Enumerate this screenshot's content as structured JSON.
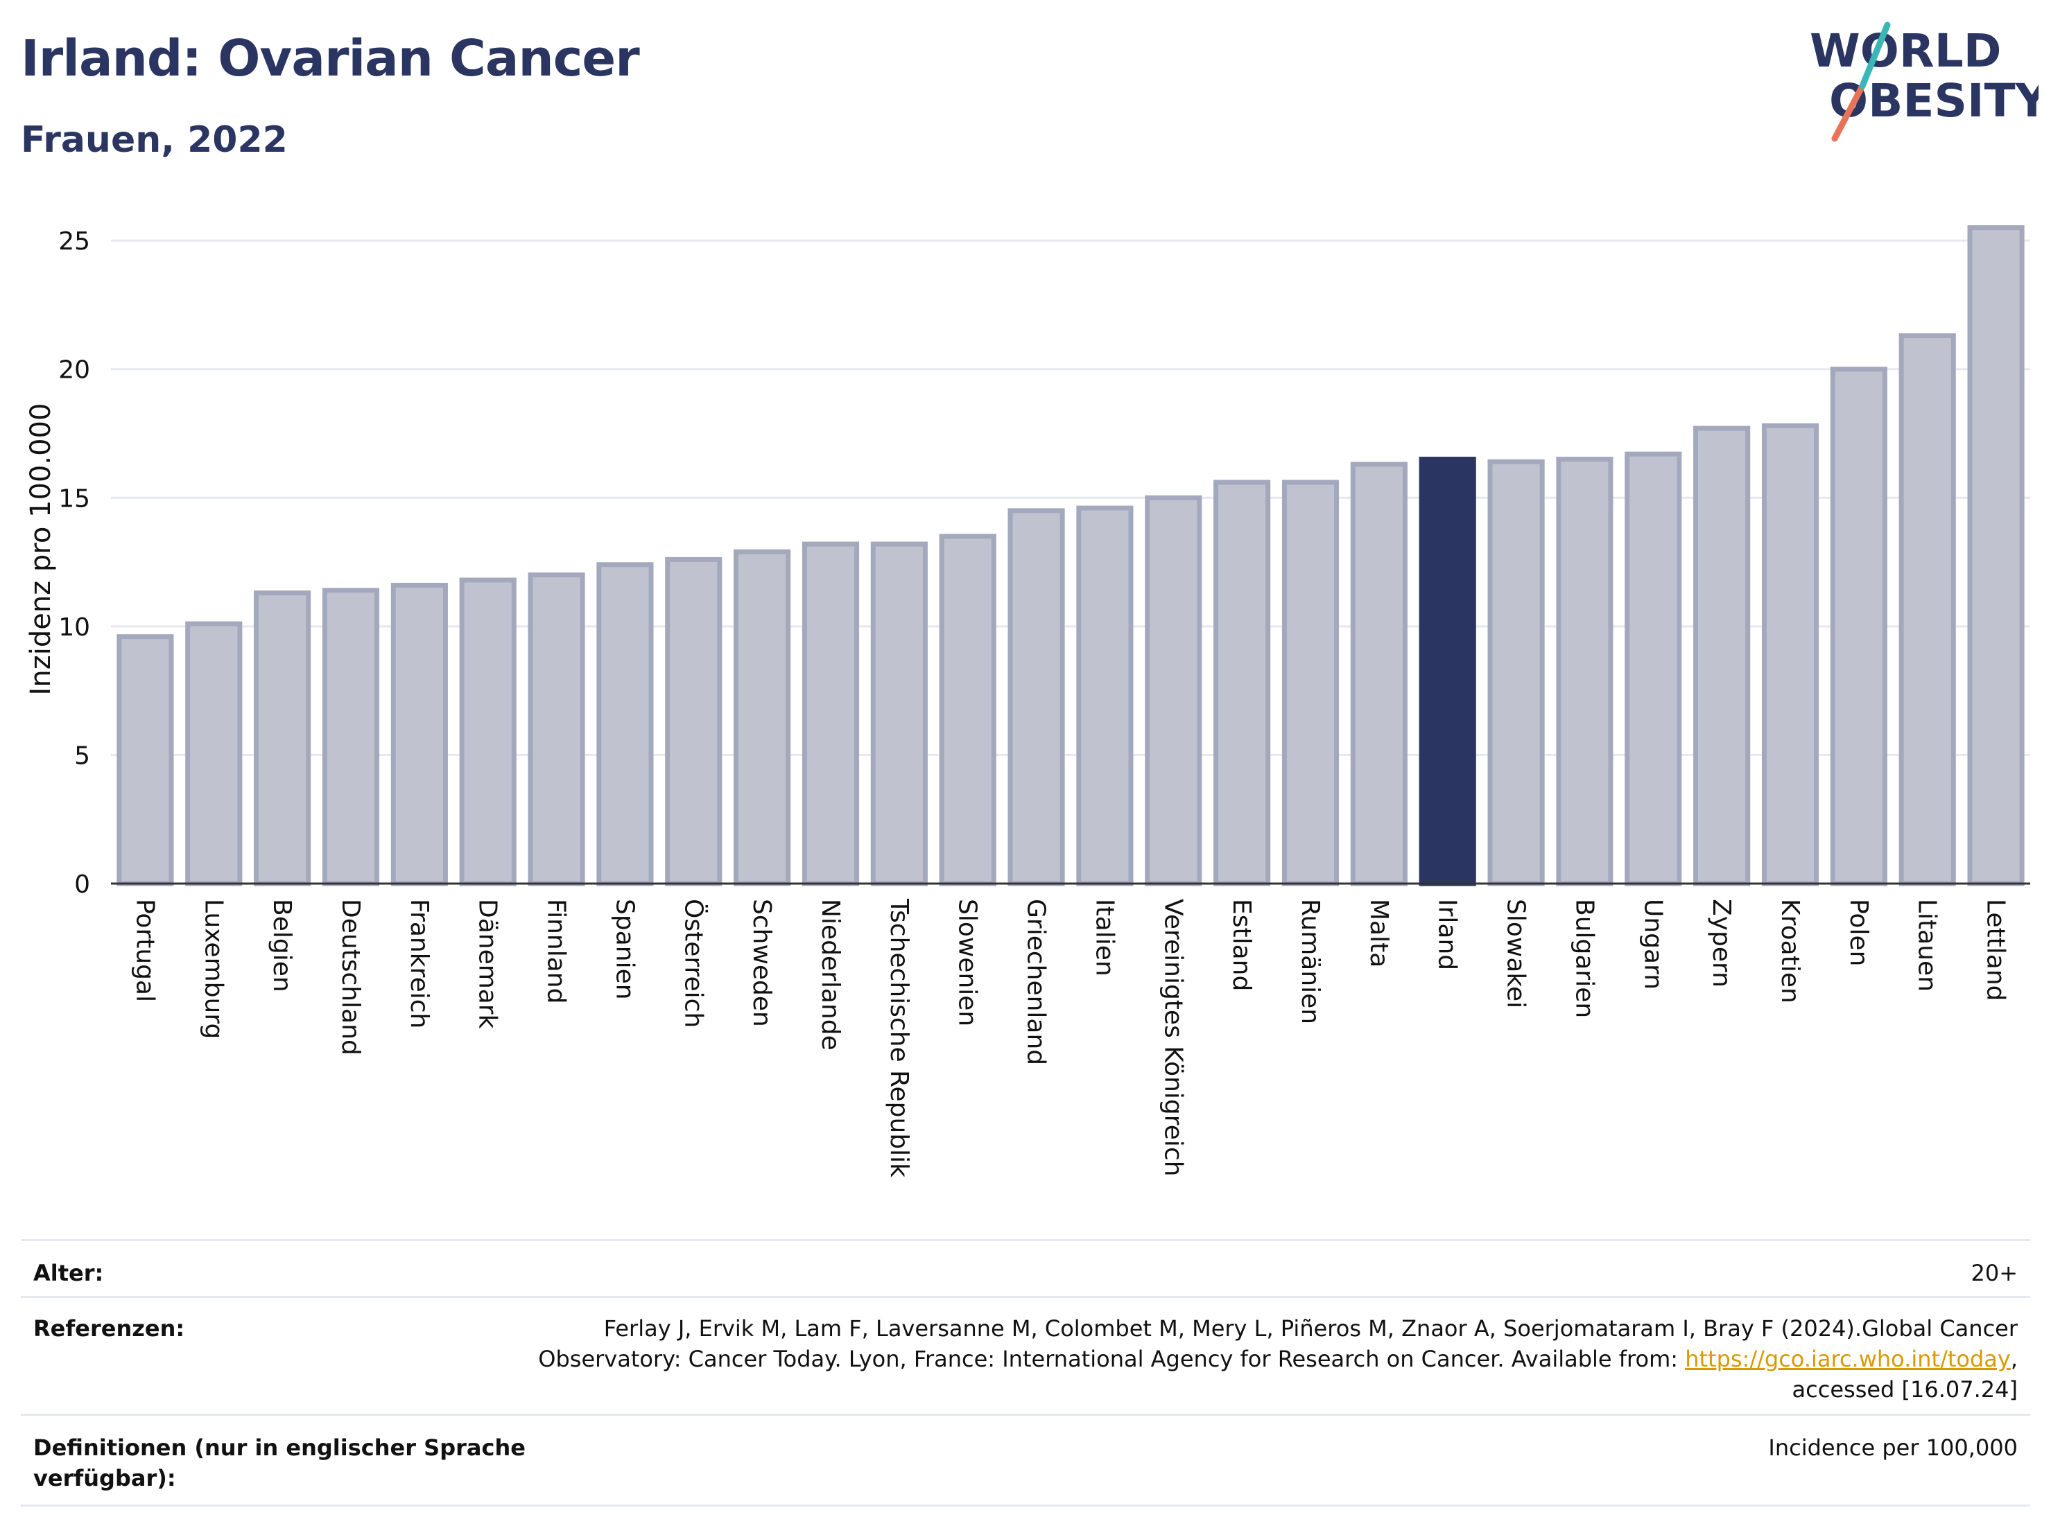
{
  "header": {
    "title": "Irland: Ovarian Cancer",
    "subtitle": "Frauen, 2022"
  },
  "logo": {
    "line1": "WORLD",
    "line2": "OBESITY",
    "colors": [
      "#2a3561",
      "#e8735a",
      "#3ab6b6"
    ]
  },
  "chart_data": {
    "type": "bar",
    "title": "Irland: Ovarian Cancer",
    "subtitle": "Frauen, 2022",
    "ylabel": "Inzidenz pro 100.000",
    "xlabel": "",
    "ylim": [
      0,
      26
    ],
    "yticks": [
      0,
      5,
      10,
      15,
      20,
      25
    ],
    "grid": true,
    "highlight": "Irland",
    "colors": {
      "default": "#c0c3cf",
      "default_edge": "#a3a8bd",
      "highlight": "#2a3561"
    },
    "categories": [
      "Portugal",
      "Luxemburg",
      "Belgien",
      "Deutschland",
      "Frankreich",
      "Dänemark",
      "Finnland",
      "Spanien",
      "Österreich",
      "Schweden",
      "Niederlande",
      "Tschechische Republik",
      "Slowenien",
      "Griechenland",
      "Italien",
      "Vereinigtes Königreich",
      "Estland",
      "Rumänien",
      "Malta",
      "Irland",
      "Slowakei",
      "Bulgarien",
      "Ungarn",
      "Zypern",
      "Kroatien",
      "Polen",
      "Litauen",
      "Lettland"
    ],
    "values": [
      9.6,
      10.1,
      11.3,
      11.4,
      11.6,
      11.8,
      12.0,
      12.4,
      12.6,
      12.9,
      13.2,
      13.2,
      13.5,
      14.5,
      14.6,
      15.0,
      15.6,
      15.6,
      16.3,
      16.5,
      16.4,
      16.5,
      16.7,
      17.7,
      17.8,
      20.0,
      21.3,
      25.5
    ]
  },
  "info": {
    "age_label": "Alter:",
    "age_value": "20+",
    "refs_label": "Referenzen:",
    "refs_text_1": "Ferlay J, Ervik M, Lam F, Laversanne M, Colombet M, Mery L, Piñeros M, Znaor A, Soerjomataram I, Bray F (2024).Global Cancer",
    "refs_text_2": "Observatory: Cancer Today. Lyon, France: International Agency for Research on Cancer. Available from: ",
    "refs_link": "https://gco.iarc.who.int/today",
    "refs_text_3": ",",
    "refs_text_4": "accessed [16.07.24]",
    "defs_label_1": "Definitionen (nur in englischer Sprache",
    "defs_label_2": "verfügbar):",
    "defs_value": "Incidence per 100,000"
  }
}
